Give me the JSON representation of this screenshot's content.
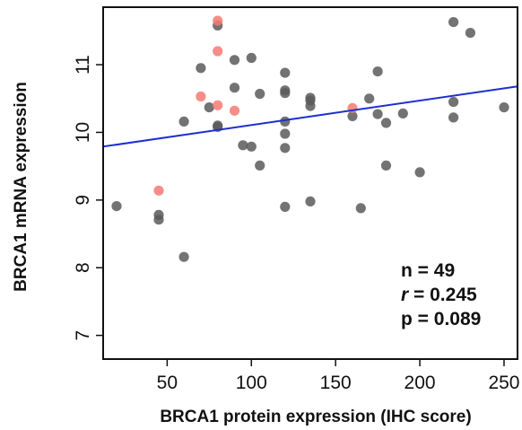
{
  "chart_data": {
    "type": "scatter",
    "xlabel": "BRCA1 protein expression (IHC score)",
    "ylabel": "BRCA1 mRNA expression",
    "xlim": [
      12,
      258
    ],
    "ylim": [
      6.65,
      11.85
    ],
    "xticks": [
      50,
      100,
      150,
      200,
      250
    ],
    "yticks": [
      7,
      8,
      9,
      10,
      11
    ],
    "grid": false,
    "colors": {
      "gray": "#5a5a5a",
      "red": "#f47a72",
      "line": "#1f2fd0",
      "axis": "#111111"
    },
    "series": [
      {
        "color": "gray",
        "points": [
          [
            20,
            8.91
          ],
          [
            45,
            8.78
          ],
          [
            45,
            8.71
          ],
          [
            60,
            8.16
          ],
          [
            60,
            10.16
          ],
          [
            70,
            10.95
          ],
          [
            75,
            10.37
          ],
          [
            80,
            11.58
          ],
          [
            80,
            10.1
          ],
          [
            80,
            10.08
          ],
          [
            90,
            11.07
          ],
          [
            90,
            10.66
          ],
          [
            95,
            9.81
          ],
          [
            100,
            11.1
          ],
          [
            100,
            9.79
          ],
          [
            105,
            10.57
          ],
          [
            105,
            9.51
          ],
          [
            120,
            10.88
          ],
          [
            120,
            10.62
          ],
          [
            120,
            10.58
          ],
          [
            120,
            10.16
          ],
          [
            120,
            9.98
          ],
          [
            120,
            9.77
          ],
          [
            120,
            8.9
          ],
          [
            135,
            10.51
          ],
          [
            135,
            10.47
          ],
          [
            135,
            10.39
          ],
          [
            135,
            8.98
          ],
          [
            160,
            10.24
          ],
          [
            165,
            8.88
          ],
          [
            170,
            10.5
          ],
          [
            175,
            10.9
          ],
          [
            175,
            10.27
          ],
          [
            180,
            10.14
          ],
          [
            180,
            9.51
          ],
          [
            190,
            10.28
          ],
          [
            200,
            9.41
          ],
          [
            220,
            11.63
          ],
          [
            220,
            10.45
          ],
          [
            220,
            10.22
          ],
          [
            230,
            11.47
          ],
          [
            250,
            10.37
          ]
        ]
      },
      {
        "color": "red",
        "points": [
          [
            45,
            9.14
          ],
          [
            70,
            10.53
          ],
          [
            80,
            11.65
          ],
          [
            80,
            11.2
          ],
          [
            80,
            10.4
          ],
          [
            90,
            10.32
          ],
          [
            160,
            10.36
          ]
        ]
      }
    ],
    "regression": {
      "x": [
        12,
        258
      ],
      "y": [
        9.79,
        10.68
      ]
    },
    "annotations": {
      "n": "n = 49",
      "r_symbol": "r",
      "r_value": " = 0.245",
      "p": "p = 0.089"
    }
  }
}
